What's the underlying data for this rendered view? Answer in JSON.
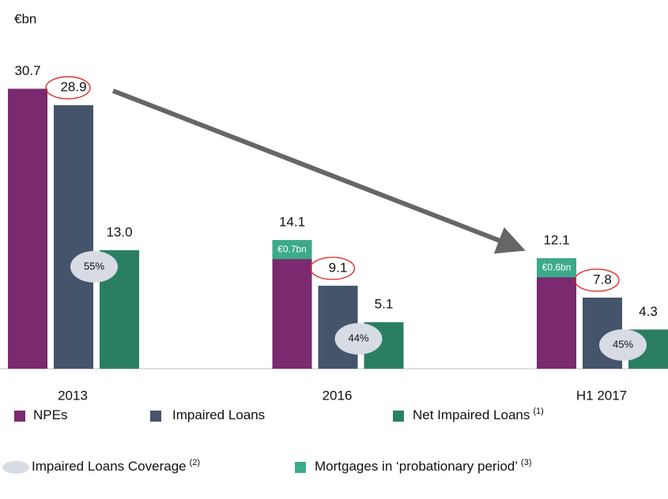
{
  "chart_data": {
    "type": "bar",
    "unit_label": "€bn",
    "categories": [
      "2013",
      "2016",
      "H1 2017"
    ],
    "series": [
      {
        "name": "NPEs",
        "color": "#7b2a6f",
        "values": [
          30.7,
          14.1,
          12.1
        ]
      },
      {
        "name": "Impaired Loans",
        "color": "#44546a",
        "values": [
          28.9,
          9.1,
          7.8
        ]
      },
      {
        "name": "Net Impaired Loans",
        "note": "(1)",
        "color": "#2a7f62",
        "values": [
          13.0,
          5.1,
          4.3
        ],
        "value_labels": [
          "13.0",
          "5.1",
          "4.3"
        ]
      }
    ],
    "coverage": {
      "name": "Impaired Loans Coverage",
      "note": "(2)",
      "color": "#d6dbe4",
      "values": [
        55,
        44,
        45
      ],
      "value_labels": [
        "55%",
        "44%",
        "45%"
      ]
    },
    "probationary": {
      "name": "Mortgages in ‘probationary period’",
      "note": "(3)",
      "color": "#3daa8a",
      "values": [
        null,
        0.7,
        0.6
      ],
      "value_labels": [
        null,
        "€0.7bn",
        "€0.6bn"
      ]
    },
    "ylim": [
      0,
      40
    ]
  }
}
